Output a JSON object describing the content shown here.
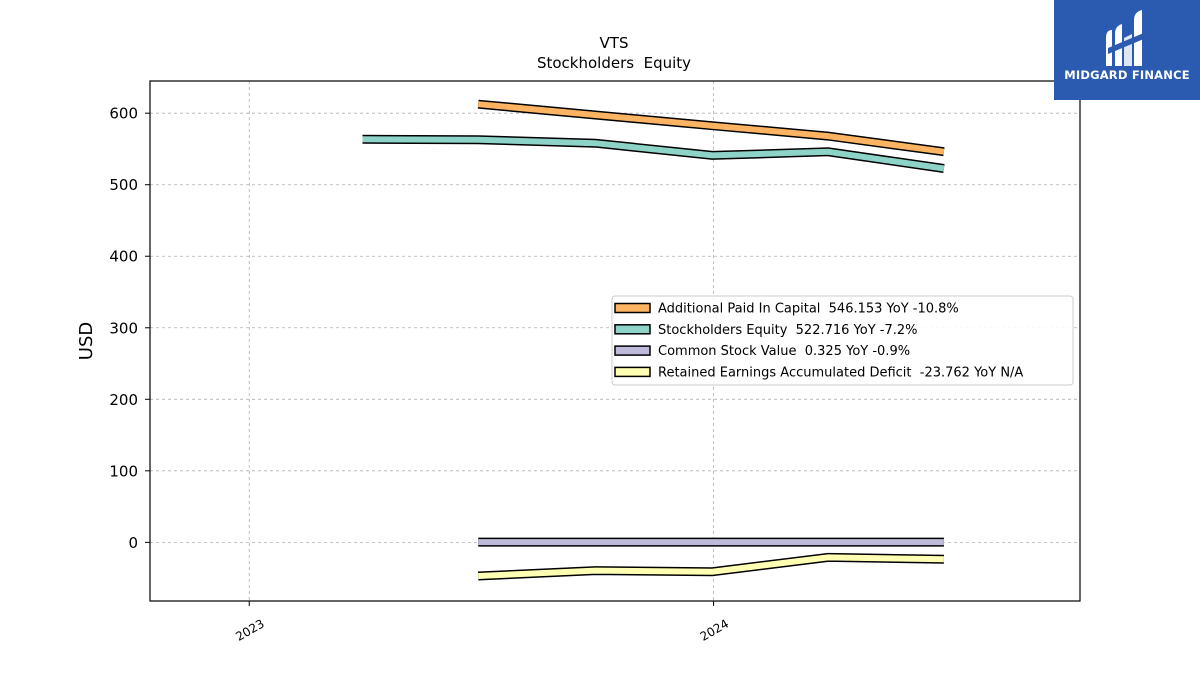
{
  "chart_data": {
    "type": "line",
    "title": "VTS",
    "subtitle": "Stockholders  Equity",
    "ylabel": "USD",
    "xlabel": "",
    "xlim": [
      "2022-10-15",
      "2024-10-15"
    ],
    "ylim": [
      -82,
      645
    ],
    "yticks": [
      0,
      100,
      200,
      300,
      400,
      500,
      600
    ],
    "xticks": [
      {
        "label": "2023",
        "date": "2023-01-01"
      },
      {
        "label": "2024",
        "date": "2024-01-01"
      }
    ],
    "grid": true,
    "legend_position": "right",
    "series": [
      {
        "name": "Additional Paid In Capital  546.153 YoY -10.8%",
        "color": "#fdb462",
        "points": [
          {
            "x": "2023-06-30",
            "y": 612.5
          },
          {
            "x": "2023-09-30",
            "y": 597.5
          },
          {
            "x": "2023-12-31",
            "y": 582.5
          },
          {
            "x": "2024-03-31",
            "y": 568.0
          },
          {
            "x": "2024-06-30",
            "y": 546.153
          }
        ]
      },
      {
        "name": "Stockholders Equity  522.716 YoY -7.2%",
        "color": "#8dd3c7",
        "points": [
          {
            "x": "2023-03-31",
            "y": 563.5
          },
          {
            "x": "2023-06-30",
            "y": 563.0
          },
          {
            "x": "2023-09-30",
            "y": 558.0
          },
          {
            "x": "2023-12-31",
            "y": 541.0
          },
          {
            "x": "2024-03-31",
            "y": 546.0
          },
          {
            "x": "2024-06-30",
            "y": 522.716
          }
        ]
      },
      {
        "name": "Common Stock Value  0.325 YoY -0.9%",
        "color": "#bebada",
        "points": [
          {
            "x": "2023-06-30",
            "y": 0.33
          },
          {
            "x": "2023-09-30",
            "y": 0.33
          },
          {
            "x": "2023-12-31",
            "y": 0.33
          },
          {
            "x": "2024-03-31",
            "y": 0.33
          },
          {
            "x": "2024-06-30",
            "y": 0.325
          }
        ]
      },
      {
        "name": "Retained Earnings Accumulated Deficit  -23.762 YoY N/A",
        "color": "#ffffb3",
        "points": [
          {
            "x": "2023-06-30",
            "y": -47.0
          },
          {
            "x": "2023-09-30",
            "y": -39.5
          },
          {
            "x": "2023-12-31",
            "y": -41.0
          },
          {
            "x": "2024-03-31",
            "y": -21.0
          },
          {
            "x": "2024-06-30",
            "y": -23.762
          }
        ]
      }
    ]
  },
  "logo": {
    "text": "MIDGARD FINANCE",
    "background": "#2b5bb0",
    "icon": "midgard-logo-icon"
  }
}
